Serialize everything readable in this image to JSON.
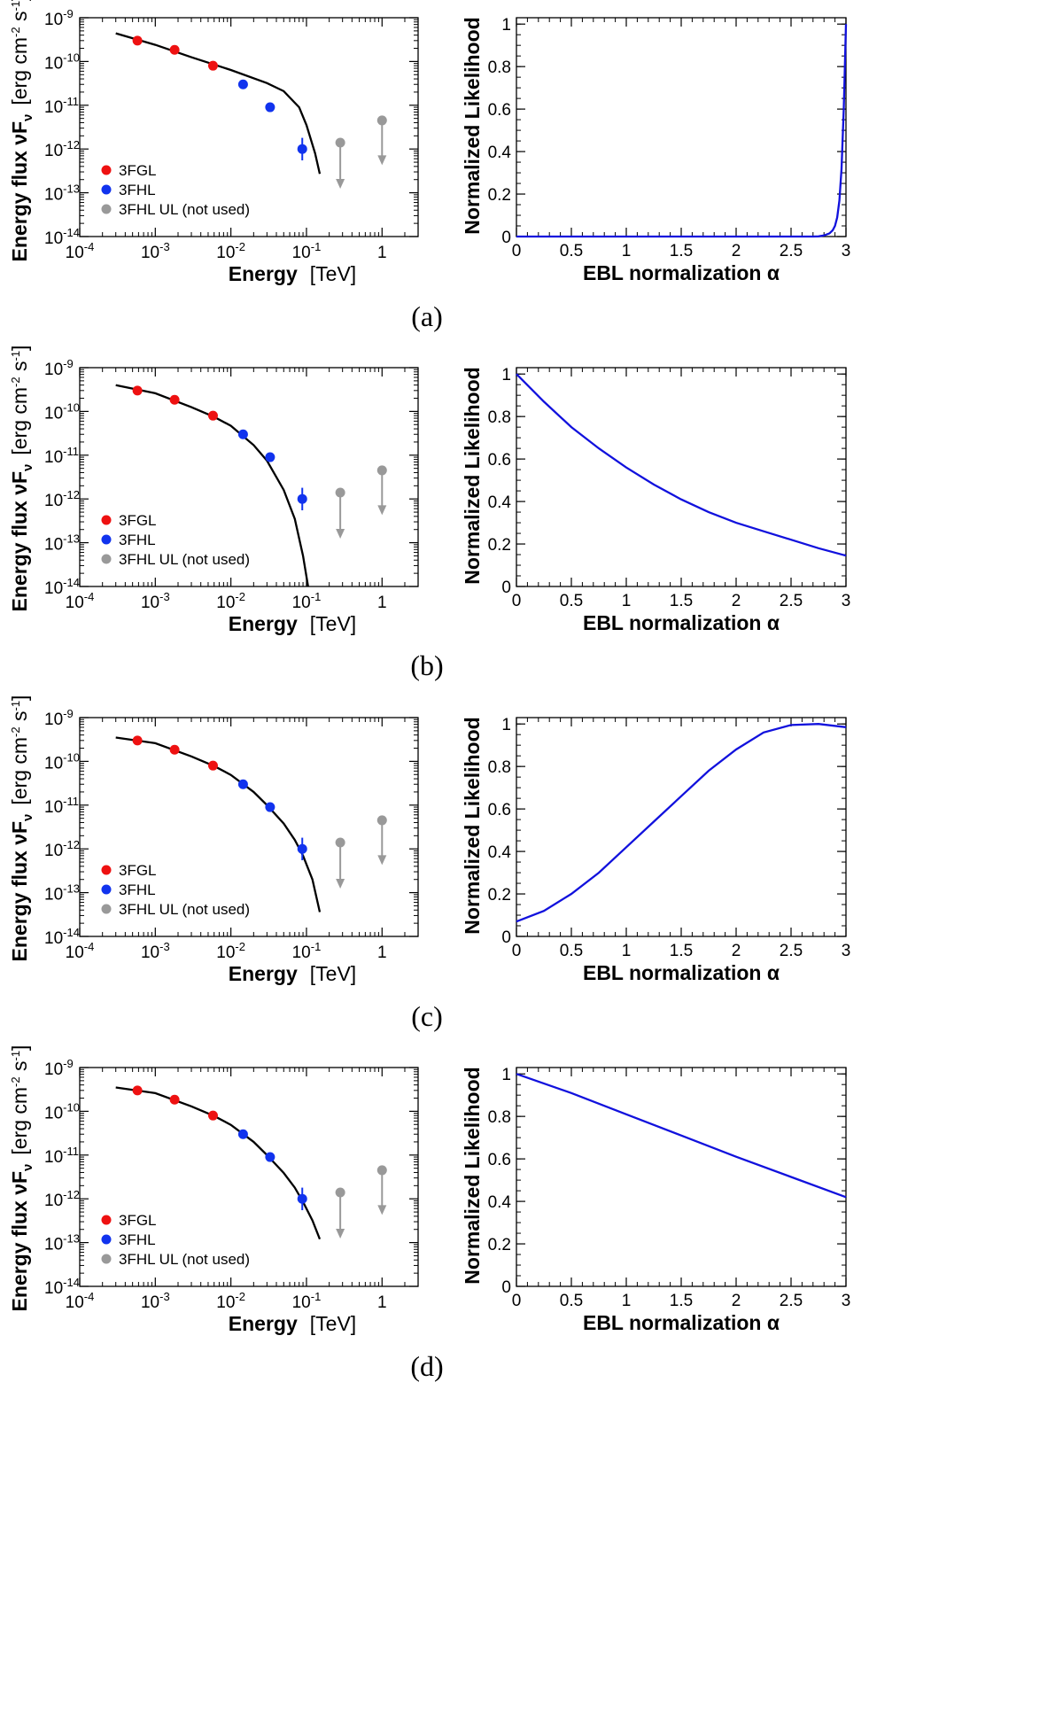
{
  "figure": {
    "captions": [
      "(a)",
      "(b)",
      "(c)",
      "(d)"
    ]
  },
  "colors": {
    "3fgl": "#ee1111",
    "3fhl": "#1133ee",
    "ul": "#999999",
    "model": "#000000",
    "likelihood": "#1111dd"
  },
  "chart_data": [
    {
      "panel": "a-left",
      "type": "scatter",
      "xscale": "log",
      "yscale": "log",
      "xlim": [
        0.0001,
        3
      ],
      "ylim": [
        1e-14,
        1e-09
      ],
      "xlabel": "Energy",
      "xunit": "[TeV]",
      "ylabel": "Energy flux νF",
      "ylabel_sub": "ν",
      "yunit": "[erg cm",
      "x_ticks": [
        {
          "e": -4,
          "label": "10"
        },
        {
          "e": -3,
          "label": "10"
        },
        {
          "e": -2,
          "label": "10"
        },
        {
          "e": -1,
          "label": "10"
        },
        {
          "e": 0,
          "label": "1"
        }
      ],
      "x_tick_exps": [
        "-4",
        "-3",
        "-2",
        "-1",
        ""
      ],
      "y_ticks": [
        {
          "e": -14,
          "label": "10"
        },
        {
          "e": -13,
          "label": "10"
        },
        {
          "e": -12,
          "label": "10"
        },
        {
          "e": -11,
          "label": "10"
        },
        {
          "e": -10,
          "label": "10"
        },
        {
          "e": -9,
          "label": "10"
        }
      ],
      "y_tick_exps": [
        "-14",
        "-13",
        "-12",
        "-11",
        "-10",
        "-9"
      ],
      "legend": [
        "3FGL",
        "3FHL",
        "3FHL UL (not used)"
      ],
      "series": [
        {
          "name": "3FGL",
          "x": [
            0.00058,
            0.0018,
            0.0058
          ],
          "y": [
            3e-10,
            1.85e-10,
            8e-11
          ],
          "yerr_hi": [
            null,
            null,
            null
          ],
          "yerr_lo": [
            null,
            null,
            null
          ]
        },
        {
          "name": "3FHL",
          "x": [
            0.0145,
            0.033,
            0.088
          ],
          "y": [
            3e-11,
            9e-12,
            1e-12
          ],
          "yerr_hi": [
            null,
            null,
            1.8e-12
          ],
          "yerr_lo": [
            null,
            null,
            5.5e-13
          ]
        },
        {
          "name": "3FHL UL (not used)",
          "x": [
            0.28,
            1.0
          ],
          "y": [
            1.4e-12,
            4.5e-12
          ],
          "arrow_to": [
            1.3e-13,
            4.5e-13
          ]
        }
      ],
      "model_curve": {
        "x": [
          0.0003,
          0.001,
          0.003,
          0.01,
          0.03,
          0.05,
          0.08,
          0.1,
          0.13,
          0.15
        ],
        "y": [
          4.4e-10,
          2.4e-10,
          1.25e-10,
          6.4e-11,
          3.2e-11,
          2.1e-11,
          9e-12,
          3.5e-12,
          8e-13,
          2.7e-13
        ]
      }
    },
    {
      "panel": "a-right",
      "type": "line",
      "xlim": [
        0,
        3
      ],
      "ylim": [
        0,
        1.03
      ],
      "xlabel": "EBL normalization α",
      "ylabel": "Normalized Likelihood",
      "x_ticks": [
        0,
        0.5,
        1,
        1.5,
        2,
        2.5,
        3
      ],
      "x_tick_labels": [
        "0",
        "0.5",
        "1",
        "1.5",
        "2",
        "2.5",
        "3"
      ],
      "y_ticks": [
        0,
        0.2,
        0.4,
        0.6,
        0.8,
        1
      ],
      "y_tick_labels": [
        "0",
        "0.2",
        "0.4",
        "0.6",
        "0.8",
        "1"
      ],
      "series": [
        {
          "name": "likelihood",
          "x": [
            0,
            2.7,
            2.75,
            2.8,
            2.85,
            2.88,
            2.9,
            2.92,
            2.94,
            2.96,
            2.98,
            3.0
          ],
          "y": [
            0,
            0,
            0.001,
            0.005,
            0.015,
            0.03,
            0.05,
            0.09,
            0.17,
            0.32,
            0.6,
            1.0
          ]
        }
      ]
    },
    {
      "panel": "b-left",
      "type": "scatter",
      "xscale": "log",
      "yscale": "log",
      "xlim": [
        0.0001,
        3
      ],
      "ylim": [
        1e-14,
        1e-09
      ],
      "xlabel": "Energy",
      "xunit": "[TeV]",
      "ylabel": "Energy flux νF",
      "ylabel_sub": "ν",
      "yunit": "[erg cm",
      "x_ticks": [
        {
          "e": -4,
          "label": "10"
        },
        {
          "e": -3,
          "label": "10"
        },
        {
          "e": -2,
          "label": "10"
        },
        {
          "e": -1,
          "label": "10"
        },
        {
          "e": 0,
          "label": "1"
        }
      ],
      "x_tick_exps": [
        "-4",
        "-3",
        "-2",
        "-1",
        ""
      ],
      "y_ticks": [
        {
          "e": -14,
          "label": "10"
        },
        {
          "e": -13,
          "label": "10"
        },
        {
          "e": -12,
          "label": "10"
        },
        {
          "e": -11,
          "label": "10"
        },
        {
          "e": -10,
          "label": "10"
        },
        {
          "e": -9,
          "label": "10"
        }
      ],
      "y_tick_exps": [
        "-14",
        "-13",
        "-12",
        "-11",
        "-10",
        "-9"
      ],
      "legend": [
        "3FGL",
        "3FHL",
        "3FHL UL (not used)"
      ],
      "series": [
        {
          "name": "3FGL",
          "x": [
            0.00058,
            0.0018,
            0.0058
          ],
          "y": [
            3e-10,
            1.85e-10,
            8e-11
          ],
          "yerr_hi": [
            null,
            null,
            null
          ],
          "yerr_lo": [
            null,
            null,
            null
          ]
        },
        {
          "name": "3FHL",
          "x": [
            0.0145,
            0.033,
            0.088
          ],
          "y": [
            3e-11,
            9e-12,
            1e-12
          ],
          "yerr_hi": [
            null,
            null,
            1.8e-12
          ],
          "yerr_lo": [
            null,
            null,
            5.5e-13
          ]
        },
        {
          "name": "3FHL UL (not used)",
          "x": [
            0.28,
            1.0
          ],
          "y": [
            1.4e-12,
            4.5e-12
          ],
          "arrow_to": [
            1.3e-13,
            4.5e-13
          ]
        }
      ],
      "model_curve": {
        "x": [
          0.0003,
          0.001,
          0.003,
          0.006,
          0.01,
          0.02,
          0.03,
          0.05,
          0.07,
          0.09,
          0.105
        ],
        "y": [
          4e-10,
          2.6e-10,
          1.25e-10,
          7.5e-11,
          4.7e-11,
          1.7e-11,
          7.5e-12,
          1.6e-12,
          3.5e-13,
          5e-14,
          1e-14
        ]
      }
    },
    {
      "panel": "b-right",
      "type": "line",
      "xlim": [
        0,
        3
      ],
      "ylim": [
        0,
        1.03
      ],
      "xlabel": "EBL normalization α",
      "ylabel": "Normalized Likelihood",
      "x_ticks": [
        0,
        0.5,
        1,
        1.5,
        2,
        2.5,
        3
      ],
      "x_tick_labels": [
        "0",
        "0.5",
        "1",
        "1.5",
        "2",
        "2.5",
        "3"
      ],
      "y_ticks": [
        0,
        0.2,
        0.4,
        0.6,
        0.8,
        1
      ],
      "y_tick_labels": [
        "0",
        "0.2",
        "0.4",
        "0.6",
        "0.8",
        "1"
      ],
      "series": [
        {
          "name": "likelihood",
          "x": [
            0,
            0.25,
            0.5,
            0.75,
            1.0,
            1.25,
            1.5,
            1.75,
            2.0,
            2.25,
            2.5,
            2.75,
            3.0
          ],
          "y": [
            1.0,
            0.87,
            0.75,
            0.65,
            0.56,
            0.48,
            0.41,
            0.35,
            0.3,
            0.26,
            0.22,
            0.18,
            0.145
          ]
        }
      ]
    },
    {
      "panel": "c-left",
      "type": "scatter",
      "xscale": "log",
      "yscale": "log",
      "xlim": [
        0.0001,
        3
      ],
      "ylim": [
        1e-14,
        1e-09
      ],
      "xlabel": "Energy",
      "xunit": "[TeV]",
      "ylabel": "Energy flux νF",
      "ylabel_sub": "ν",
      "yunit": "[erg cm",
      "x_ticks": [
        {
          "e": -4,
          "label": "10"
        },
        {
          "e": -3,
          "label": "10"
        },
        {
          "e": -2,
          "label": "10"
        },
        {
          "e": -1,
          "label": "10"
        },
        {
          "e": 0,
          "label": "1"
        }
      ],
      "x_tick_exps": [
        "-4",
        "-3",
        "-2",
        "-1",
        ""
      ],
      "y_ticks": [
        {
          "e": -14,
          "label": "10"
        },
        {
          "e": -13,
          "label": "10"
        },
        {
          "e": -12,
          "label": "10"
        },
        {
          "e": -11,
          "label": "10"
        },
        {
          "e": -10,
          "label": "10"
        },
        {
          "e": -9,
          "label": "10"
        }
      ],
      "y_tick_exps": [
        "-14",
        "-13",
        "-12",
        "-11",
        "-10",
        "-9"
      ],
      "legend": [
        "3FGL",
        "3FHL",
        "3FHL UL (not used)"
      ],
      "series": [
        {
          "name": "3FGL",
          "x": [
            0.00058,
            0.0018,
            0.0058
          ],
          "y": [
            3e-10,
            1.85e-10,
            8e-11
          ],
          "yerr_hi": [
            null,
            null,
            null
          ],
          "yerr_lo": [
            null,
            null,
            null
          ]
        },
        {
          "name": "3FHL",
          "x": [
            0.0145,
            0.033,
            0.088
          ],
          "y": [
            3e-11,
            9e-12,
            1e-12
          ],
          "yerr_hi": [
            null,
            null,
            1.8e-12
          ],
          "yerr_lo": [
            null,
            null,
            5.5e-13
          ]
        },
        {
          "name": "3FHL UL (not used)",
          "x": [
            0.28,
            1.0
          ],
          "y": [
            1.4e-12,
            4.5e-12
          ],
          "arrow_to": [
            1.3e-13,
            4.5e-13
          ]
        }
      ],
      "model_curve": {
        "x": [
          0.0003,
          0.001,
          0.003,
          0.006,
          0.01,
          0.02,
          0.03,
          0.05,
          0.07,
          0.09,
          0.12,
          0.15
        ],
        "y": [
          3.5e-10,
          2.6e-10,
          1.3e-10,
          7.8e-11,
          4.9e-11,
          2e-11,
          1e-11,
          3.8e-12,
          1.6e-12,
          7e-13,
          2e-13,
          3.6e-14
        ]
      }
    },
    {
      "panel": "c-right",
      "type": "line",
      "xlim": [
        0,
        3
      ],
      "ylim": [
        0,
        1.03
      ],
      "xlabel": "EBL normalization α",
      "ylabel": "Normalized Likelihood",
      "x_ticks": [
        0,
        0.5,
        1,
        1.5,
        2,
        2.5,
        3
      ],
      "x_tick_labels": [
        "0",
        "0.5",
        "1",
        "1.5",
        "2",
        "2.5",
        "3"
      ],
      "y_ticks": [
        0,
        0.2,
        0.4,
        0.6,
        0.8,
        1
      ],
      "y_tick_labels": [
        "0",
        "0.2",
        "0.4",
        "0.6",
        "0.8",
        "1"
      ],
      "series": [
        {
          "name": "likelihood",
          "x": [
            0,
            0.25,
            0.5,
            0.75,
            1.0,
            1.25,
            1.5,
            1.75,
            2.0,
            2.25,
            2.5,
            2.75,
            3.0
          ],
          "y": [
            0.07,
            0.12,
            0.2,
            0.3,
            0.42,
            0.54,
            0.66,
            0.78,
            0.88,
            0.96,
            0.995,
            1.0,
            0.985
          ]
        }
      ]
    },
    {
      "panel": "d-left",
      "type": "scatter",
      "xscale": "log",
      "yscale": "log",
      "xlim": [
        0.0001,
        3
      ],
      "ylim": [
        1e-14,
        1e-09
      ],
      "xlabel": "Energy",
      "xunit": "[TeV]",
      "ylabel": "Energy flux νF",
      "ylabel_sub": "ν",
      "yunit": "[erg cm",
      "x_ticks": [
        {
          "e": -4,
          "label": "10"
        },
        {
          "e": -3,
          "label": "10"
        },
        {
          "e": -2,
          "label": "10"
        },
        {
          "e": -1,
          "label": "10"
        },
        {
          "e": 0,
          "label": "1"
        }
      ],
      "x_tick_exps": [
        "-4",
        "-3",
        "-2",
        "-1",
        ""
      ],
      "y_ticks": [
        {
          "e": -14,
          "label": "10"
        },
        {
          "e": -13,
          "label": "10"
        },
        {
          "e": -12,
          "label": "10"
        },
        {
          "e": -11,
          "label": "10"
        },
        {
          "e": -10,
          "label": "10"
        },
        {
          "e": -9,
          "label": "10"
        }
      ],
      "y_tick_exps": [
        "-14",
        "-13",
        "-12",
        "-11",
        "-10",
        "-9"
      ],
      "legend": [
        "3FGL",
        "3FHL",
        "3FHL UL (not used)"
      ],
      "series": [
        {
          "name": "3FGL",
          "x": [
            0.00058,
            0.0018,
            0.0058
          ],
          "y": [
            3e-10,
            1.85e-10,
            8e-11
          ],
          "yerr_hi": [
            null,
            null,
            null
          ],
          "yerr_lo": [
            null,
            null,
            null
          ]
        },
        {
          "name": "3FHL",
          "x": [
            0.0145,
            0.033,
            0.088
          ],
          "y": [
            3e-11,
            9e-12,
            1e-12
          ],
          "yerr_hi": [
            null,
            null,
            1.8e-12
          ],
          "yerr_lo": [
            null,
            null,
            5.5e-13
          ]
        },
        {
          "name": "3FHL UL (not used)",
          "x": [
            0.28,
            1.0
          ],
          "y": [
            1.4e-12,
            4.5e-12
          ],
          "arrow_to": [
            1.3e-13,
            4.5e-13
          ]
        }
      ],
      "model_curve": {
        "x": [
          0.0003,
          0.001,
          0.003,
          0.006,
          0.01,
          0.02,
          0.03,
          0.05,
          0.07,
          0.09,
          0.12,
          0.15
        ],
        "y": [
          3.5e-10,
          2.6e-10,
          1.3e-10,
          7.8e-11,
          4.9e-11,
          2e-11,
          1e-11,
          3.9e-12,
          1.8e-12,
          8.5e-13,
          3.2e-13,
          1.2e-13
        ]
      }
    },
    {
      "panel": "d-right",
      "type": "line",
      "xlim": [
        0,
        3
      ],
      "ylim": [
        0,
        1.03
      ],
      "xlabel": "EBL normalization α",
      "ylabel": "Normalized Likelihood",
      "x_ticks": [
        0,
        0.5,
        1,
        1.5,
        2,
        2.5,
        3
      ],
      "x_tick_labels": [
        "0",
        "0.5",
        "1",
        "1.5",
        "2",
        "2.5",
        "3"
      ],
      "y_ticks": [
        0,
        0.2,
        0.4,
        0.6,
        0.8,
        1
      ],
      "y_tick_labels": [
        "0",
        "0.2",
        "0.4",
        "0.6",
        "0.8",
        "1"
      ],
      "series": [
        {
          "name": "likelihood",
          "x": [
            0,
            0.5,
            1.0,
            1.5,
            2.0,
            2.5,
            3.0
          ],
          "y": [
            1.0,
            0.91,
            0.81,
            0.71,
            0.61,
            0.515,
            0.42
          ]
        }
      ]
    }
  ]
}
